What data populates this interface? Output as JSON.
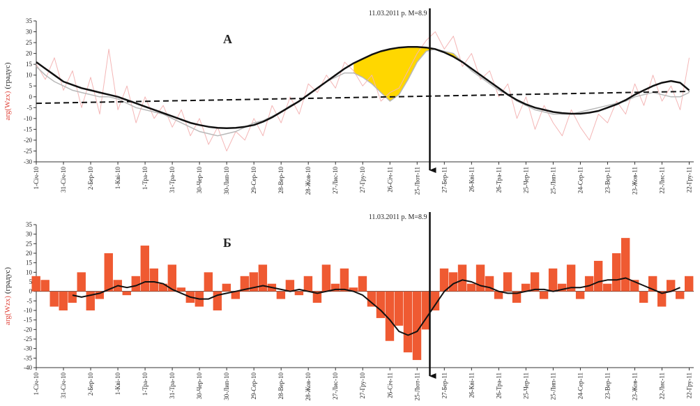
{
  "chart_data": [
    {
      "type": "line",
      "label": "А",
      "ylabel": "arg(Wzx)",
      "ylabel_unit": "(градус)",
      "event": {
        "x": 434,
        "label": "11.03.2011 р. M=8.9"
      },
      "x": [
        0,
        10,
        20,
        30,
        40,
        50,
        60,
        70,
        80,
        90,
        100,
        110,
        120,
        130,
        140,
        150,
        160,
        170,
        180,
        190,
        200,
        210,
        220,
        230,
        240,
        250,
        260,
        270,
        280,
        290,
        300,
        310,
        320,
        330,
        340,
        350,
        360,
        370,
        380,
        390,
        400,
        410,
        420,
        430,
        440,
        450,
        460,
        470,
        480,
        490,
        500,
        510,
        520,
        530,
        540,
        550,
        560,
        570,
        580,
        590,
        600,
        610,
        620,
        630,
        640,
        650,
        660,
        670,
        680,
        690,
        700,
        710,
        720
      ],
      "series": [
        {
          "kind": "line",
          "color": "#f4b6b6",
          "width": 1,
          "values": [
            15,
            8,
            18,
            3,
            12,
            -5,
            9,
            -8,
            22,
            -6,
            5,
            -12,
            0,
            -10,
            -4,
            -14,
            -6,
            -18,
            -10,
            -22,
            -14,
            -25,
            -16,
            -20,
            -10,
            -18,
            -4,
            -12,
            0,
            -8,
            6,
            2,
            10,
            4,
            16,
            12,
            5,
            10,
            -2,
            2,
            4,
            12,
            20,
            26,
            30,
            22,
            28,
            14,
            20,
            8,
            12,
            0,
            6,
            -10,
            0,
            -15,
            -4,
            -12,
            -18,
            -6,
            -14,
            -20,
            -8,
            -12,
            -2,
            -8,
            6,
            -4,
            10,
            -2,
            5,
            -6,
            18
          ]
        },
        {
          "kind": "line",
          "color": "#b8b8b8",
          "width": 1.5,
          "values": [
            14,
            10,
            7,
            5,
            3,
            2,
            1,
            0,
            0,
            -1,
            -3,
            -5,
            -6,
            -7,
            -8,
            -10,
            -12,
            -14,
            -16,
            -17,
            -18,
            -17,
            -16,
            -14,
            -12,
            -11,
            -9,
            -7,
            -4,
            -2,
            1,
            4,
            7,
            9,
            11,
            11,
            9,
            6,
            2,
            -2,
            1,
            8,
            16,
            21,
            22,
            21,
            20,
            16,
            12,
            9,
            6,
            3,
            1,
            -2,
            -4,
            -6,
            -7,
            -8,
            -8,
            -8,
            -7,
            -6,
            -5,
            -4,
            -3,
            -2,
            0,
            1,
            2,
            1,
            0,
            0,
            2
          ]
        },
        {
          "kind": "line",
          "color": "#111111",
          "width": 2.5,
          "values": [
            16,
            13,
            10,
            7,
            5.5,
            4,
            3,
            2,
            1,
            0,
            -1.5,
            -3,
            -4.5,
            -6,
            -7.5,
            -9,
            -10.5,
            -12,
            -13,
            -13.8,
            -14.3,
            -14.5,
            -14.3,
            -13.8,
            -13,
            -11.5,
            -9.5,
            -7,
            -4.5,
            -2,
            1,
            4,
            7,
            10,
            13,
            15.5,
            17.5,
            19.5,
            21,
            22,
            22.7,
            23,
            23,
            22.7,
            22,
            20.5,
            18.5,
            16,
            13,
            10,
            7,
            4,
            1,
            -1.5,
            -3.5,
            -5,
            -6,
            -7,
            -7.5,
            -7.8,
            -7.8,
            -7.3,
            -6.5,
            -5,
            -3.5,
            -1.5,
            1,
            3,
            5,
            6.5,
            7.3,
            6.5,
            3
          ]
        },
        {
          "kind": "line",
          "color": "#111111",
          "width": 2,
          "dash": true,
          "x": [
            0,
            720
          ],
          "values": [
            -3,
            2.5
          ]
        }
      ],
      "fill_between": {
        "upper": 2,
        "lower": 1,
        "from": 350,
        "to": 470,
        "color": "#ffd700"
      },
      "xlim": [
        0,
        725
      ],
      "ylim": [
        -30,
        35
      ],
      "yticks": [
        -30,
        -25,
        -20,
        -15,
        -10,
        -5,
        0,
        5,
        10,
        15,
        20,
        25,
        30,
        35
      ],
      "xticks": [
        {
          "value": 0,
          "label": "1-Січ-10"
        },
        {
          "value": 30,
          "label": "31-Січ-10"
        },
        {
          "value": 60,
          "label": "2-Бер-10"
        },
        {
          "value": 90,
          "label": "1-Кві-10"
        },
        {
          "value": 120,
          "label": "1-Тра-10"
        },
        {
          "value": 150,
          "label": "31-Тра-10"
        },
        {
          "value": 180,
          "label": "30-Чер-10"
        },
        {
          "value": 210,
          "label": "30-Лип-10"
        },
        {
          "value": 240,
          "label": "29-Сер-10"
        },
        {
          "value": 270,
          "label": "28-Вер-10"
        },
        {
          "value": 300,
          "label": "28-Жов-10"
        },
        {
          "value": 330,
          "label": "27-Лис-10"
        },
        {
          "value": 360,
          "label": "27-Гру-10"
        },
        {
          "value": 390,
          "label": "26-Січ-11"
        },
        {
          "value": 420,
          "label": "25-Лют-11"
        },
        {
          "value": 450,
          "label": "27-Бер-11"
        },
        {
          "value": 480,
          "label": "26-Кві-11"
        },
        {
          "value": 510,
          "label": "26-Тра-11"
        },
        {
          "value": 540,
          "label": "25-Чер-11"
        },
        {
          "value": 570,
          "label": "25-Лип-11"
        },
        {
          "value": 600,
          "label": "24-Сер-11"
        },
        {
          "value": 630,
          "label": "23-Вер-11"
        },
        {
          "value": 660,
          "label": "23-Жов-11"
        },
        {
          "value": 690,
          "label": "22-Лис-11"
        },
        {
          "value": 720,
          "label": "22-Гру-11"
        }
      ]
    },
    {
      "type": "bar",
      "label": "Б",
      "ylabel": "arg(Wzx)",
      "ylabel_unit": "(градус)",
      "event": {
        "x": 434,
        "label": "11.03.2011 р. M=8.9"
      },
      "x": [
        0,
        10,
        20,
        30,
        40,
        50,
        60,
        70,
        80,
        90,
        100,
        110,
        120,
        130,
        140,
        150,
        160,
        170,
        180,
        190,
        200,
        210,
        220,
        230,
        240,
        250,
        260,
        270,
        280,
        290,
        300,
        310,
        320,
        330,
        340,
        350,
        360,
        370,
        380,
        390,
        400,
        410,
        420,
        430,
        440,
        450,
        460,
        470,
        480,
        490,
        500,
        510,
        520,
        530,
        540,
        550,
        560,
        570,
        580,
        590,
        600,
        610,
        620,
        630,
        640,
        650,
        660,
        670,
        680,
        690,
        700,
        710,
        720
      ],
      "series": [
        {
          "kind": "bar",
          "color": "#ef5a32",
          "values": [
            8,
            6,
            -8,
            -10,
            -6,
            10,
            -10,
            -4,
            20,
            6,
            -2,
            8,
            24,
            12,
            4,
            14,
            2,
            -6,
            -8,
            10,
            -10,
            4,
            -4,
            8,
            10,
            14,
            4,
            -4,
            6,
            -2,
            8,
            -6,
            14,
            4,
            12,
            2,
            8,
            -8,
            -14,
            -26,
            -18,
            -32,
            -36,
            -20,
            -10,
            12,
            10,
            14,
            4,
            14,
            8,
            -4,
            10,
            -6,
            4,
            10,
            -4,
            12,
            4,
            14,
            -4,
            8,
            16,
            4,
            20,
            28,
            6,
            -6,
            8,
            -8,
            6,
            -4,
            8
          ]
        },
        {
          "kind": "line",
          "color": "#111111",
          "width": 2,
          "values": [
            null,
            null,
            null,
            null,
            -2,
            -3,
            -2,
            -1,
            1,
            3,
            2,
            3,
            5,
            5,
            4,
            1,
            -1,
            -3,
            -4,
            -4,
            -2,
            -1,
            0,
            1,
            2,
            3,
            2,
            1,
            0,
            1,
            0,
            -1,
            0,
            1,
            1,
            0,
            -2,
            -6,
            -10,
            -15,
            -21,
            -23,
            -21,
            -14,
            -7,
            0,
            4,
            6,
            5,
            3,
            2,
            0,
            -1,
            -1,
            0,
            1,
            1,
            0,
            1,
            2,
            2,
            3,
            5,
            6,
            6,
            7,
            5,
            3,
            1,
            -1,
            0,
            2,
            null
          ]
        }
      ],
      "xlim": [
        0,
        725
      ],
      "ylim": [
        -40,
        35
      ],
      "yticks": [
        -40,
        -35,
        -30,
        -25,
        -20,
        -15,
        -10,
        -5,
        0,
        5,
        10,
        15,
        20,
        25,
        30,
        35
      ],
      "xticks": [
        {
          "value": 0,
          "label": "1-Січ-10"
        },
        {
          "value": 30,
          "label": "31-Січ-10"
        },
        {
          "value": 60,
          "label": "2-Бер-10"
        },
        {
          "value": 90,
          "label": "1-Кві-10"
        },
        {
          "value": 120,
          "label": "1-Тра-10"
        },
        {
          "value": 150,
          "label": "31-Тра-10"
        },
        {
          "value": 180,
          "label": "30-Чер-10"
        },
        {
          "value": 210,
          "label": "30-Лип-10"
        },
        {
          "value": 240,
          "label": "29-Сер-10"
        },
        {
          "value": 270,
          "label": "28-Вер-10"
        },
        {
          "value": 300,
          "label": "28-Жов-10"
        },
        {
          "value": 330,
          "label": "27-Лис-10"
        },
        {
          "value": 360,
          "label": "27-Гру-10"
        },
        {
          "value": 390,
          "label": "26-Січ-11"
        },
        {
          "value": 420,
          "label": "25-Лют-11"
        },
        {
          "value": 450,
          "label": "27-Бер-11"
        },
        {
          "value": 480,
          "label": "26-Кві-11"
        },
        {
          "value": 510,
          "label": "26-Тра-11"
        },
        {
          "value": 540,
          "label": "25-Чер-11"
        },
        {
          "value": 570,
          "label": "25-Лип-11"
        },
        {
          "value": 600,
          "label": "24-Сер-11"
        },
        {
          "value": 630,
          "label": "23-Вер-11"
        },
        {
          "value": 660,
          "label": "23-Жов-11"
        },
        {
          "value": 690,
          "label": "22-Лис-11"
        },
        {
          "value": 720,
          "label": "22-Гру-11"
        }
      ]
    }
  ]
}
